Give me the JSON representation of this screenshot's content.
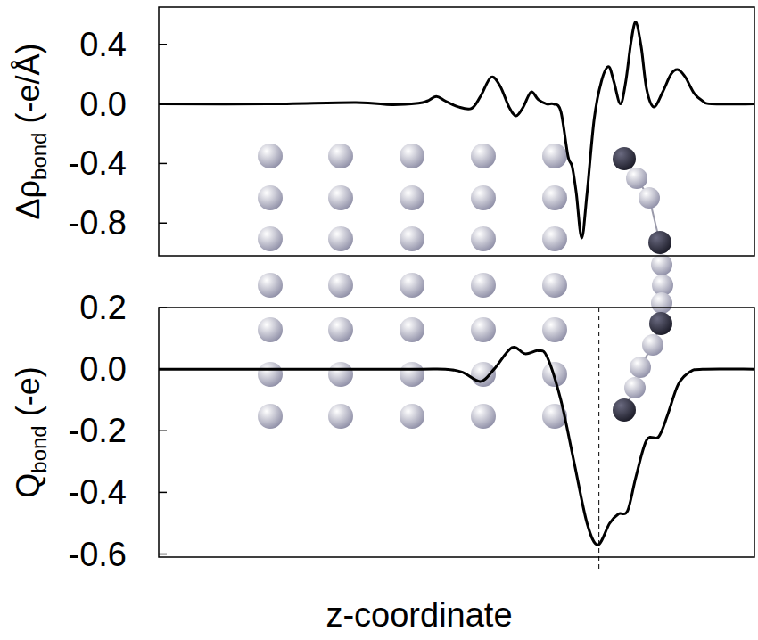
{
  "chart_data": [
    {
      "type": "line",
      "ylabel": "Δρbond (-e/Å)",
      "ylabel_sub": "bond",
      "x": [
        0,
        18.2,
        33.1,
        39.1,
        43.6,
        45.1,
        46.6,
        48.1,
        50.3,
        52.5,
        54.0,
        55.8,
        57.3,
        58.8,
        60.0,
        61.2,
        62.5,
        63.7,
        65.1,
        66.3,
        67.5,
        68.7,
        69.4,
        70.1,
        71.0,
        71.9,
        73.1,
        74.3,
        75.5,
        76.4,
        77.5,
        78.4,
        79.3,
        80.1,
        81.0,
        81.9,
        83.1,
        84.6,
        86.0,
        87.2,
        88.4,
        89.9,
        91.3,
        92.8,
        100
      ],
      "values": [
        0,
        0,
        0.01,
        -0.005,
        0.005,
        0.02,
        0.05,
        0.02,
        -0.02,
        -0.03,
        0.05,
        0.18,
        0.12,
        -0.02,
        -0.08,
        -0.02,
        0.08,
        0.03,
        0.0,
        0.0,
        -0.05,
        -0.35,
        -0.42,
        -0.6,
        -0.9,
        -0.6,
        -0.1,
        0.15,
        0.25,
        0.15,
        0.0,
        0.15,
        0.42,
        0.55,
        0.38,
        0.1,
        -0.02,
        0.08,
        0.2,
        0.23,
        0.18,
        0.07,
        0.02,
        0.0,
        0
      ],
      "color": "#000000",
      "xlim": [
        0,
        100
      ],
      "xticks": [],
      "ylim": [
        -1.02,
        0.65
      ],
      "yticks": [
        -0.8,
        -0.4,
        {
          "value": 0,
          "label": "0.0"
        },
        0.4
      ],
      "tick_labels": "y",
      "grid": false
    },
    {
      "type": "line",
      "ylabel": "Qbond (-e)",
      "ylabel_sub": "bond",
      "xlabel": "z-coordinate",
      "x": [
        0,
        20,
        42.1,
        48.1,
        51.0,
        54.0,
        56.3,
        59.3,
        61.5,
        63.7,
        65.2,
        67.5,
        69.7,
        71.9,
        73.7,
        75.7,
        77.2,
        78.7,
        80.1,
        81.9,
        83.9,
        85.4,
        87.2,
        89.1,
        91.3,
        100
      ],
      "values": [
        0,
        0,
        0,
        0.0,
        -0.01,
        -0.04,
        0.0,
        0.07,
        0.05,
        0.06,
        0.04,
        -0.1,
        -0.3,
        -0.5,
        -0.57,
        -0.5,
        -0.47,
        -0.46,
        -0.35,
        -0.23,
        -0.22,
        -0.15,
        -0.05,
        -0.01,
        0,
        0
      ],
      "color": "#000000",
      "xlim": [
        0,
        100
      ],
      "xticks": [],
      "ylim": [
        -0.61,
        0.2
      ],
      "yticks": [
        -0.6,
        -0.4,
        -0.2,
        {
          "value": 0,
          "label": "0.0"
        },
        0.2
      ],
      "reference_line": {
        "x": 73.9,
        "line_style": "dashed"
      },
      "tick_labels": "y",
      "grid": false
    }
  ]
}
